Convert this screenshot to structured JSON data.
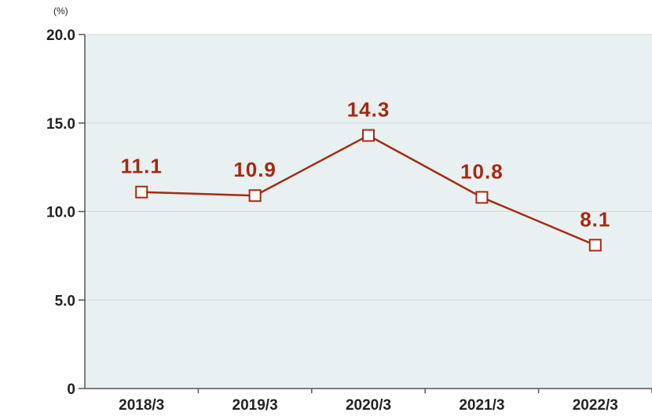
{
  "chart_data": {
    "type": "line",
    "unit_label": "(%)",
    "categories": [
      "2018/3",
      "2019/3",
      "2020/3",
      "2021/3",
      "2022/3"
    ],
    "values": [
      11.1,
      10.9,
      14.3,
      10.8,
      8.1
    ],
    "value_labels": [
      "11.1",
      "10.9",
      "14.3",
      "10.8",
      "8.1"
    ],
    "ylim": [
      0,
      20
    ],
    "yticks": [
      0,
      5,
      10,
      15,
      20
    ],
    "ytick_labels": [
      "0",
      "5.0",
      "10.0",
      "15.0",
      "20.0"
    ],
    "grid": true,
    "legend": "none",
    "colors": {
      "line": "#a52a12",
      "marker_fill": "#ffffff",
      "plot_background": "#e9f0f1",
      "gridline": "#d3d9da",
      "axis": "#555555",
      "label_text": "#a52a12"
    }
  }
}
